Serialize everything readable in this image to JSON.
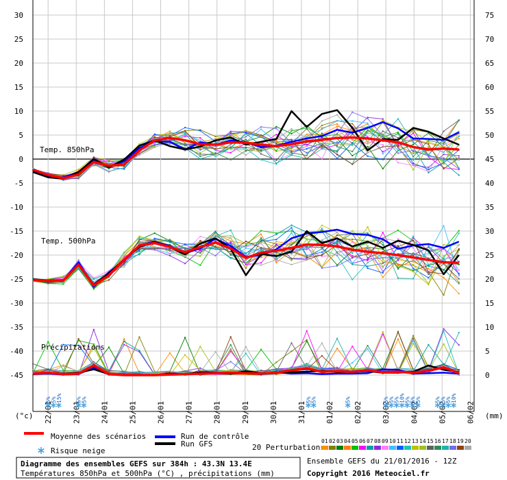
{
  "chart_data": {
    "type": "line",
    "left_axis": {
      "ylim": [
        -45,
        30
      ],
      "ticks": [
        30,
        25,
        20,
        15,
        10,
        5,
        0,
        -5,
        -10,
        -15,
        -20,
        -25,
        -30,
        -35,
        -40,
        -45
      ],
      "unit": "(°c)"
    },
    "right_axis": {
      "ylim": [
        0,
        75
      ],
      "ticks": [
        75,
        70,
        65,
        60,
        55,
        50,
        45,
        40,
        35,
        30,
        25,
        20,
        15,
        10,
        5,
        0
      ],
      "unit": "(mm)"
    },
    "x_ticks": [
      "22/01",
      "23/01",
      "24/01",
      "25/01",
      "26/01",
      "27/01",
      "28/01",
      "29/01",
      "30/01",
      "31/01",
      "01/02",
      "02/02",
      "03/02",
      "04/02",
      "05/02",
      "06/02"
    ],
    "panels": [
      {
        "label": "Temp. 850hPa"
      },
      {
        "label": "Temp. 500hPa"
      },
      {
        "label": "Précipitations"
      }
    ],
    "series": [
      {
        "name": "Moyenne des scénarios",
        "color": "#ff0000",
        "t850": [
          -2.2,
          -3.3,
          -4.0,
          -3.2,
          -0.6,
          -1.4,
          -1.1,
          1.8,
          3.9,
          4.4,
          3.9,
          3.1,
          3.0,
          3.5,
          3.4,
          3.0,
          2.7,
          3.1,
          3.7,
          4.0,
          4.4,
          4.5,
          4.3,
          3.9,
          3.5,
          2.5,
          2.0,
          2.2,
          2.0
        ],
        "t500": [
          -25.2,
          -25.4,
          -25.3,
          -22.0,
          -26.3,
          -24.2,
          -21.0,
          -18.0,
          -17.5,
          -18.3,
          -19.4,
          -18.3,
          -17.4,
          -18.6,
          -20.6,
          -19.5,
          -19.1,
          -18.5,
          -17.8,
          -17.9,
          -18.2,
          -18.9,
          -19.3,
          -19.6,
          -20.0,
          -20.5,
          -21.0,
          -21.5,
          -21.6
        ],
        "precip": [
          0.3,
          0.5,
          0.2,
          0.3,
          2.0,
          0.2,
          0.0,
          0.0,
          0.0,
          0.1,
          0.2,
          0.3,
          0.4,
          0.5,
          0.4,
          0.3,
          0.5,
          1.0,
          1.4,
          0.7,
          0.8,
          0.7,
          1.0,
          0.6,
          0.7,
          0.5,
          0.9,
          1.6,
          0.4
        ]
      },
      {
        "name": "Run de contrôle",
        "color": "#0000ff",
        "t850": [
          -2.5,
          -3.6,
          -3.8,
          -2.7,
          -0.3,
          -1.7,
          -0.5,
          2.3,
          3.7,
          3.6,
          2.0,
          3.5,
          3.0,
          3.9,
          3.5,
          2.5,
          2.8,
          3.6,
          4.3,
          4.8,
          6.1,
          5.5,
          6.5,
          7.7,
          6.4,
          4.3,
          4.2,
          4.0,
          5.6
        ],
        "t500": [
          -25.1,
          -25.5,
          -25.3,
          -21.5,
          -26.6,
          -23.6,
          -21.2,
          -18.0,
          -17.2,
          -18.1,
          -19.6,
          -18.6,
          -16.6,
          -18.1,
          -20.4,
          -20.0,
          -18.8,
          -16.5,
          -15.5,
          -15.2,
          -14.7,
          -15.6,
          -15.8,
          -16.7,
          -18.7,
          -18.0,
          -17.7,
          -18.5,
          -17.2
        ],
        "precip": [
          0.2,
          0.3,
          0.1,
          0.2,
          1.6,
          0.1,
          0.0,
          0.0,
          0.0,
          0.2,
          0.1,
          0.4,
          0.3,
          0.3,
          0.4,
          0.2,
          0.6,
          0.3,
          0.4,
          0.2,
          0.3,
          0.3,
          0.4,
          1.2,
          1.1,
          0.3,
          0.4,
          0.5,
          0.3
        ]
      },
      {
        "name": "Run GFS",
        "color": "#000000",
        "t850": [
          -2.7,
          -3.8,
          -4.1,
          -2.7,
          0.0,
          -1.7,
          -0.1,
          2.8,
          3.9,
          2.7,
          2.0,
          2.6,
          3.9,
          4.5,
          3.0,
          3.6,
          4.2,
          10.0,
          6.7,
          9.4,
          10.2,
          6.5,
          1.8,
          4.2,
          4.0,
          6.5,
          5.7,
          4.3,
          3.0
        ],
        "t500": [
          -25.0,
          -25.3,
          -25.2,
          -22.0,
          -26.1,
          -23.8,
          -20.9,
          -18.3,
          -17.3,
          -18.3,
          -19.9,
          -17.6,
          -16.5,
          -18.7,
          -24.2,
          -19.8,
          -20.2,
          -19.3,
          -15.0,
          -17.5,
          -16.5,
          -18.2,
          -17.2,
          -18.5,
          -17.0,
          -17.9,
          -19.0,
          -24.0,
          -20.0
        ],
        "precip": [
          0.2,
          0.4,
          0.3,
          0.5,
          1.2,
          0.2,
          0.0,
          0.0,
          0.0,
          0.3,
          0.2,
          0.6,
          0.5,
          0.3,
          0.8,
          0.4,
          0.5,
          0.6,
          0.7,
          0.9,
          0.6,
          0.7,
          0.8,
          0.5,
          0.5,
          0.7,
          2.0,
          1.1,
          0.6
        ]
      }
    ],
    "perturbations": {
      "count": 20,
      "labels": [
        "01",
        "02",
        "03",
        "04",
        "05",
        "06",
        "07",
        "08",
        "09",
        "10",
        "11",
        "12",
        "13",
        "14",
        "15",
        "16",
        "17",
        "18",
        "19",
        "20"
      ],
      "colors": [
        "#ff8c00",
        "#808000",
        "#008000",
        "#ff8000",
        "#00c000",
        "#ff00ff",
        "#00a0a0",
        "#8a2be2",
        "#ff80ff",
        "#40c0ff",
        "#0060ff",
        "#20c0c0",
        "#c0c000",
        "#a0c020",
        "#606060",
        "#2e8b57",
        "#20b2aa",
        "#7b68ee",
        "#8b4513",
        "#a9a9a9"
      ],
      "t850_range": [
        -6.5,
        13.5
      ],
      "t500_range": [
        -31.5,
        -9.5
      ],
      "precip_max_mm": 16
    },
    "snow_risk": [
      {
        "x_index": 1,
        "label": "5%"
      },
      {
        "x_index": 1.35,
        "label": "5%"
      },
      {
        "x_index": 1.7,
        "label": "15%"
      },
      {
        "x_index": 3,
        "label": "5%"
      },
      {
        "x_index": 3.35,
        "label": "5%"
      },
      {
        "x_index": 18.1,
        "label": "5%"
      },
      {
        "x_index": 18.45,
        "label": "5%"
      },
      {
        "x_index": 20.7,
        "label": "5%"
      },
      {
        "x_index": 23.2,
        "label": "5%"
      },
      {
        "x_index": 23.55,
        "label": "5%"
      },
      {
        "x_index": 23.9,
        "label": "5%"
      },
      {
        "x_index": 24.25,
        "label": "10%"
      },
      {
        "x_index": 24.6,
        "label": "5%"
      },
      {
        "x_index": 24.95,
        "label": "5%"
      },
      {
        "x_index": 25.3,
        "label": "5%"
      },
      {
        "x_index": 26.6,
        "label": "5%"
      },
      {
        "x_index": 26.95,
        "label": "5%"
      },
      {
        "x_index": 27.3,
        "label": "5%"
      },
      {
        "x_index": 27.65,
        "label": "10%"
      }
    ]
  },
  "legend": {
    "mean": "Moyenne des scénarios",
    "control": "Run de contrôle",
    "gfs": "Run GFS",
    "perturbations": "20 Perturbations",
    "snow": "Risque neige"
  },
  "footer": {
    "title": "Diagramme des ensembles GEFS sur 384h : 43.3N 13.4E",
    "subtitle": "Températures 850hPa et 500hPa (°C) , précipitations (mm)",
    "run": "Ensemble GEFS du 21/01/2016 - 12Z",
    "copyright": "Copyright 2016 Meteociel.fr"
  }
}
